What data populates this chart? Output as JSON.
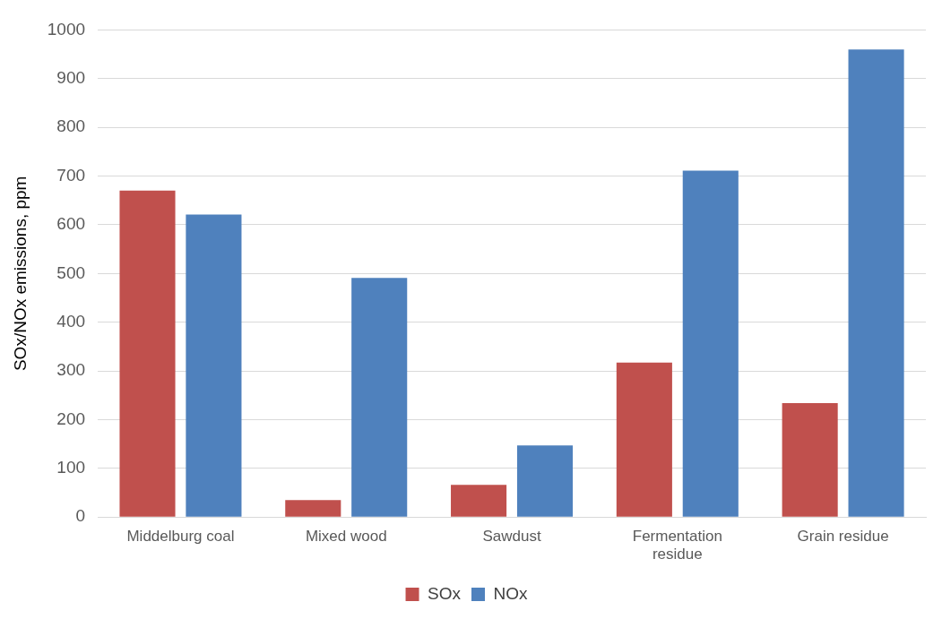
{
  "chart_data": {
    "type": "bar",
    "ylabel": "SOx/NOx emissions, ppm",
    "categories": [
      "Middelburg coal",
      "Mixed wood",
      "Sawdust",
      "Fermentation residue",
      "Grain residue"
    ],
    "series": [
      {
        "name": "SOx",
        "color": "#c0504d",
        "values": [
          670,
          35,
          66,
          317,
          234
        ]
      },
      {
        "name": "NOx",
        "color": "#4f81bd",
        "values": [
          621,
          491,
          147,
          711,
          960
        ]
      }
    ],
    "ylim": [
      0,
      1000
    ],
    "yticks": [
      0,
      100,
      200,
      300,
      400,
      500,
      600,
      700,
      800,
      900,
      1000
    ],
    "grid": "y",
    "legend": "bottom"
  }
}
